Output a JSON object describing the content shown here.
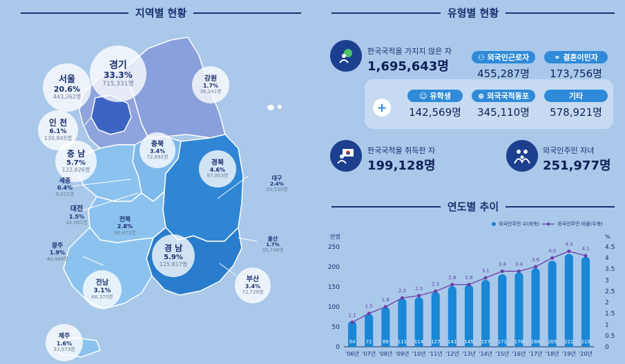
{
  "sections": {
    "regional": "지역별 현황",
    "type": "유형별 현황",
    "trend": "연도별 추이"
  },
  "regions": {
    "gyeonggi": {
      "name": "경기",
      "pct": "33.3%",
      "count": "715,331명"
    },
    "seoul": {
      "name": "서울",
      "pct": "20.6%",
      "count": "443,262명"
    },
    "incheon": {
      "name": "인 천",
      "pct": "6.1%",
      "count": "130,845명"
    },
    "gangwon": {
      "name": "강원",
      "pct": "1.7%",
      "count": "36,341명"
    },
    "chungnam": {
      "name": "충 남",
      "pct": "5.7%",
      "count": "122,826명"
    },
    "chungbuk": {
      "name": "충북",
      "pct": "3.4%",
      "count": "72,692명"
    },
    "sejong": {
      "name": "세종",
      "pct": "0.4%",
      "count": "9,312명"
    },
    "daejeon": {
      "name": "대전",
      "pct": "1.5%",
      "count": "32,061명"
    },
    "gyeongbuk": {
      "name": "경북",
      "pct": "4.6%",
      "count": "97,953명"
    },
    "daegu": {
      "name": "대구",
      "pct": "2.4%",
      "count": "50,530명"
    },
    "jeonbuk": {
      "name": "전북",
      "pct": "2.8%",
      "count": "60,872명"
    },
    "ulsan": {
      "name": "울산",
      "pct": "1.7%",
      "count": "35,746명"
    },
    "gwangju": {
      "name": "광주",
      "pct": "1.9%",
      "count": "40,480명"
    },
    "gyeongnam": {
      "name": "경 남",
      "pct": "5.9%",
      "count": "125,817명"
    },
    "jeonnam": {
      "name": "전남",
      "pct": "3.1%",
      "count": "66,370명"
    },
    "busan": {
      "name": "부산",
      "pct": "3.4%",
      "count": "72,729명"
    },
    "jeju": {
      "name": "제주",
      "pct": "1.6%",
      "count": "33,573명"
    }
  },
  "types": {
    "non_naturalized": {
      "label": "한국국적을 가지지 않은 자",
      "value": "1,695,643명"
    },
    "workers": {
      "label": "외국인근로자",
      "value": "455,287명"
    },
    "marriage": {
      "label": "결혼이민자",
      "value": "173,756명"
    },
    "students": {
      "label": "유학생",
      "value": "142,569명"
    },
    "compatriots": {
      "label": "외국국적동포",
      "value": "345,110명"
    },
    "others": {
      "label": "기타",
      "value": "578,921명"
    },
    "naturalized": {
      "label": "한국국적을 취득한 자",
      "value": "199,128명"
    },
    "children": {
      "label": "외국인주민 자녀",
      "value": "251,977명"
    },
    "plus_sign": "+"
  },
  "colors": {
    "bg": "#a9c8ea",
    "navy": "#1b2f6e",
    "bar": "#1a86d6",
    "line": "#6a3fa6",
    "gyeonggi": "#8fa3dc",
    "seoul_metro": "#3d64c2",
    "gangwon": "#8aa0dc",
    "chungcheong": "#7fb8ea",
    "gyeongbuk": "#2f86d4",
    "jeolla": "#8cc2ee",
    "gyeongnam": "#2a7dcc"
  },
  "chart_data": {
    "type": "bar",
    "categories": [
      "'06년",
      "'07년",
      "'08년",
      "'09년",
      "'10년",
      "'11년",
      "'12년",
      "'13년",
      "'14년",
      "'15년",
      "'16년",
      "'17년",
      "'18년",
      "'19년",
      "'20년"
    ],
    "series": [
      {
        "name": "외국인주민 수(좌축)",
        "type": "bar",
        "axis": "left",
        "values": [
          54,
          72,
          89,
          111,
          114,
          127,
          141,
          145,
          157,
          171,
          176,
          186,
          205,
          222,
          215
        ]
      },
      {
        "name": "외국인주민 비율(우축)",
        "type": "line",
        "axis": "right",
        "values": [
          1.1,
          1.5,
          1.8,
          2.2,
          2.3,
          2.5,
          2.8,
          2.8,
          3.1,
          3.4,
          3.4,
          3.6,
          4.0,
          4.3,
          4.1
        ]
      }
    ],
    "ylabel_left": "만명",
    "ylabel_right": "%",
    "ylim_left": [
      0,
      250
    ],
    "ylim_right": [
      0,
      4.5
    ],
    "yticks_left": [
      "0",
      "50",
      "100",
      "150",
      "200",
      "250"
    ],
    "yticks_right": [
      "0",
      "0.5",
      "1",
      "1.5",
      "2",
      "2.5",
      "3",
      "3.5",
      "4",
      "4.5"
    ],
    "legend_position": "top-right"
  }
}
